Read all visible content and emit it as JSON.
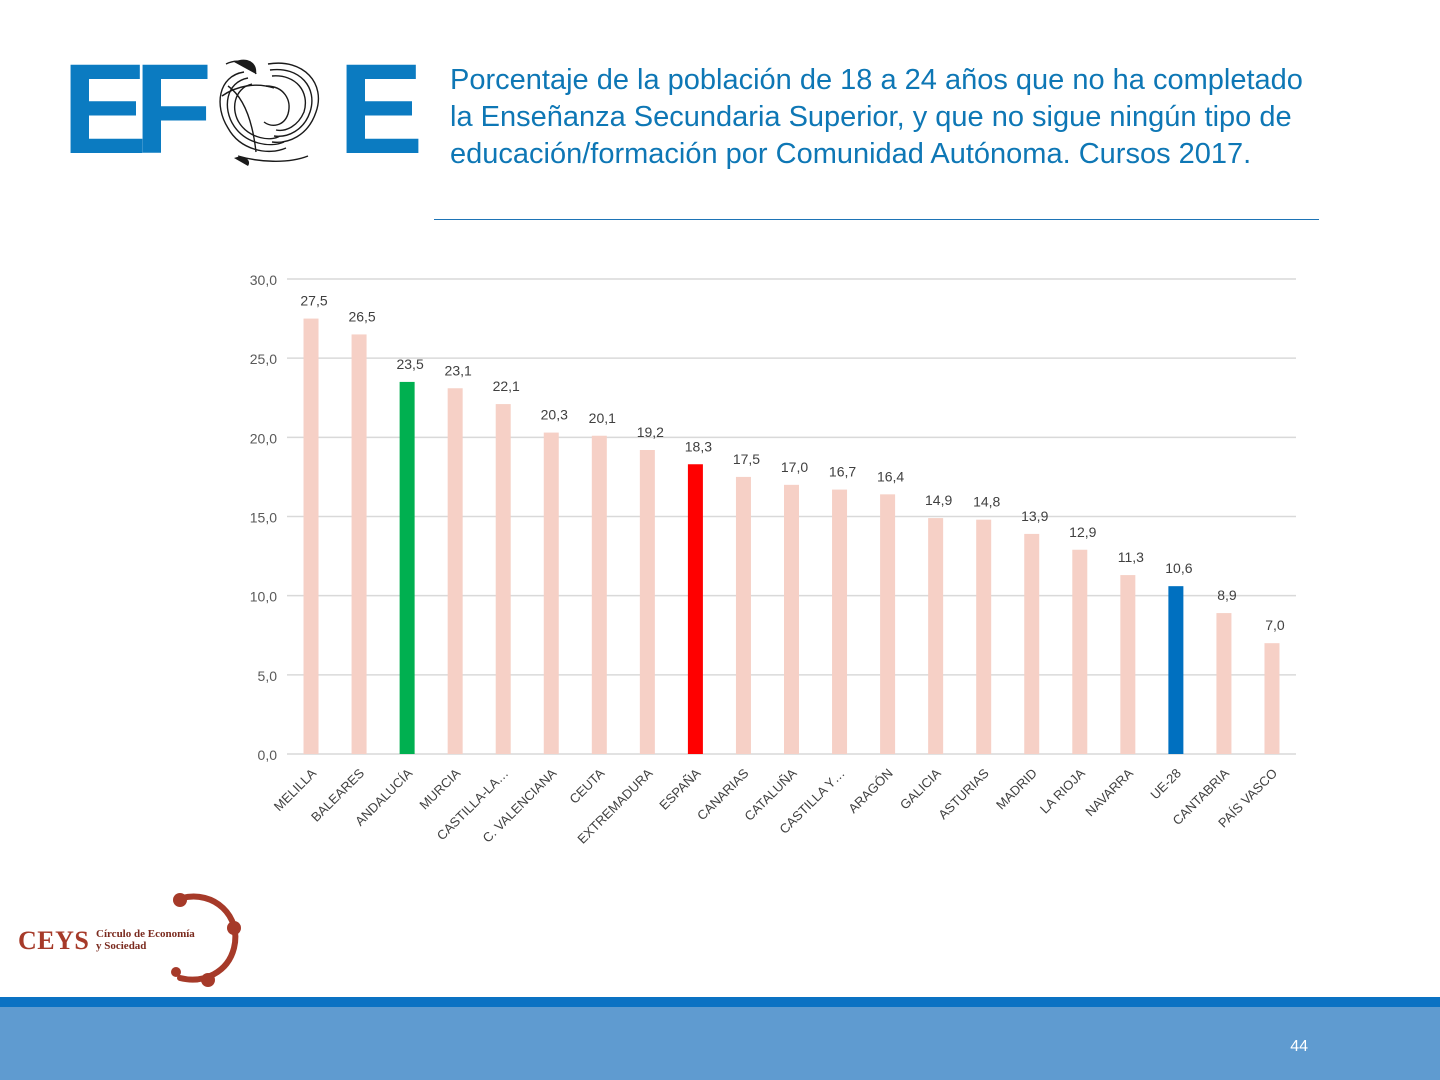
{
  "header": {
    "logo_text": "EFSE",
    "title": "Porcentaje de la población de 18 a 24 años que no ha completado la Enseñanza Secundaria Superior, y que no sigue ningún tipo  de educación/formación por Comunidad Autónoma. Cursos 2017."
  },
  "chart_data": {
    "type": "bar",
    "title": "",
    "xlabel": "",
    "ylabel": "",
    "ylim": [
      0,
      30
    ],
    "yticks": [
      "0,0",
      "5,0",
      "10,0",
      "15,0",
      "20,0",
      "25,0",
      "30,0"
    ],
    "grid": true,
    "legend": "none",
    "categories": [
      "MELILLA",
      "BALEARES",
      "ANDALUCÍA",
      "MURCIA",
      "CASTILLA-LA…",
      "C. VALENCIANA",
      "CEUTA",
      "EXTREMADURA",
      "ESPAÑA",
      "CANARIAS",
      "CATALUÑA",
      "CASTILLA Y…",
      "ARAGÓN",
      "GALICIA",
      "ASTURIAS",
      "MADRID",
      "LA RIOJA",
      "NAVARRA",
      "UE-28",
      "CANTABRIA",
      "PAÍS VASCO"
    ],
    "values": [
      27.5,
      26.5,
      23.5,
      23.1,
      22.1,
      20.3,
      20.1,
      19.2,
      18.3,
      17.5,
      17.0,
      16.7,
      16.4,
      14.9,
      14.8,
      13.9,
      12.9,
      11.3,
      10.6,
      8.9,
      7.0
    ],
    "value_labels": [
      "27,5",
      "26,5",
      "23,5",
      "23,1",
      "22,1",
      "20,3",
      "20,1",
      "19,2",
      "18,3",
      "17,5",
      "17,0",
      "16,7",
      "16,4",
      "14,9",
      "14,8",
      "13,9",
      "12,9",
      "11,3",
      "10,6",
      "8,9",
      "7,0"
    ],
    "colors": {
      "default": "#f6d0c6",
      "ANDALUCÍA": "#00b050",
      "ESPAÑA": "#ff0000",
      "UE-28": "#0070c0"
    }
  },
  "footer": {
    "ceys_logo": "CEYS",
    "ceys_subtitle_1": "Círculo de Economía",
    "ceys_subtitle_2": "y Sociedad",
    "page_number": "44"
  }
}
